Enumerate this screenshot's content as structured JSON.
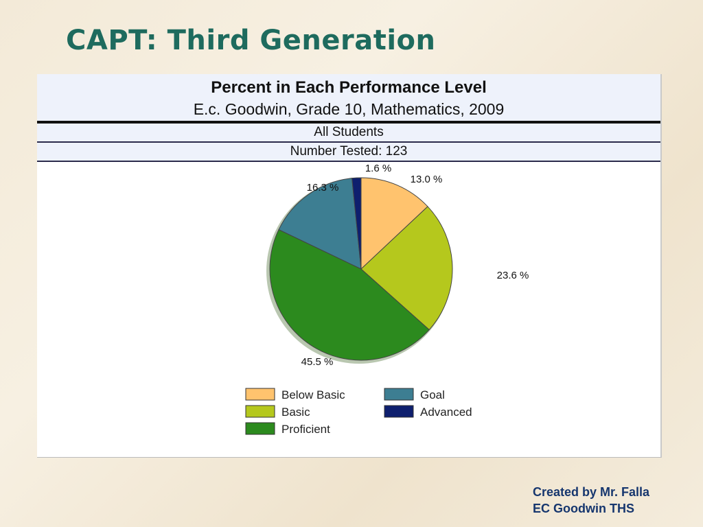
{
  "slide": {
    "title": "CAPT: Third Generation",
    "credit_line1": "Created by Mr. Falla",
    "credit_line2": "EC Goodwin THS"
  },
  "report": {
    "title": "Percent in Each Performance Level",
    "subtitle": "E.c. Goodwin, Grade 10, Mathematics, 2009",
    "group": "All Students",
    "number_tested": "Number Tested:  123"
  },
  "chart_data": {
    "type": "pie",
    "title": "Percent in Each Performance Level",
    "subtitle": "E.c. Goodwin, Grade 10, Mathematics, 2009",
    "categories": [
      "Below Basic",
      "Basic",
      "Proficient",
      "Goal",
      "Advanced"
    ],
    "values": [
      13.0,
      23.6,
      45.5,
      16.3,
      1.6
    ],
    "labels": [
      "13.0 %",
      "23.6 %",
      "45.5 %",
      "16.3 %",
      "1.6 %"
    ],
    "colors": [
      "#ffc36e",
      "#b5c81d",
      "#2c8a1e",
      "#3d7e92",
      "#0e1f6e"
    ],
    "legend": {
      "placement": "bottom",
      "items": [
        {
          "label": "Below Basic",
          "color": "#ffc36e"
        },
        {
          "label": "Goal",
          "color": "#3d7e92"
        },
        {
          "label": "Basic",
          "color": "#b5c81d"
        },
        {
          "label": "Advanced",
          "color": "#0e1f6e"
        },
        {
          "label": "Proficient",
          "color": "#2c8a1e"
        }
      ]
    }
  }
}
